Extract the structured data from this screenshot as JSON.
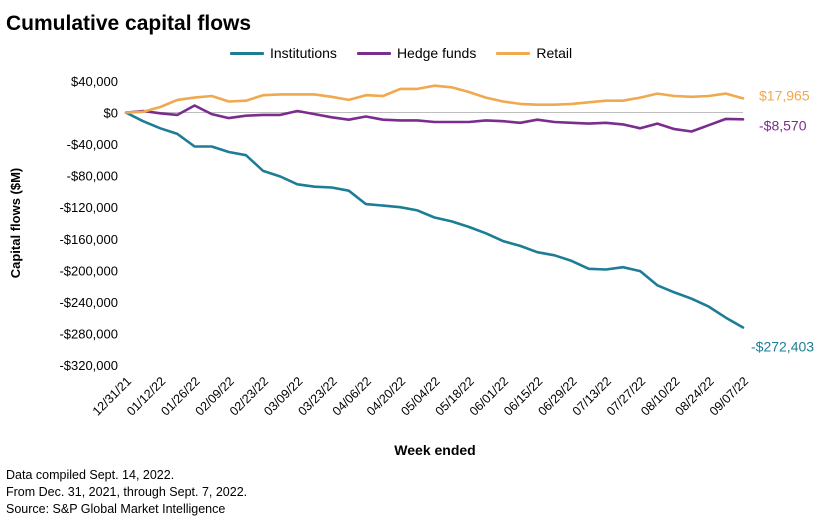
{
  "chart_data": {
    "type": "line",
    "title": "Cumulative capital flows",
    "xlabel": "Week ended",
    "ylabel": "Capital flows ($M)",
    "ylim": [
      -320000,
      40000
    ],
    "yticks": [
      40000,
      0,
      -40000,
      -80000,
      -120000,
      -160000,
      -200000,
      -240000,
      -280000,
      -320000
    ],
    "ytick_labels": [
      "$40,000",
      "$0",
      "-$40,000",
      "-$80,000",
      "-$120,000",
      "-$160,000",
      "-$200,000",
      "-$240,000",
      "-$280,000",
      "-$320,000"
    ],
    "x": [
      "12/31/21",
      "01/05/22",
      "01/12/22",
      "01/19/22",
      "01/26/22",
      "02/02/22",
      "02/09/22",
      "02/16/22",
      "02/23/22",
      "03/02/22",
      "03/09/22",
      "03/16/22",
      "03/23/22",
      "03/30/22",
      "04/06/22",
      "04/13/22",
      "04/20/22",
      "04/27/22",
      "05/04/22",
      "05/11/22",
      "05/18/22",
      "05/25/22",
      "06/01/22",
      "06/08/22",
      "06/15/22",
      "06/22/22",
      "06/29/22",
      "07/06/22",
      "07/13/22",
      "07/20/22",
      "07/27/22",
      "08/03/22",
      "08/10/22",
      "08/17/22",
      "08/24/22",
      "08/31/22",
      "09/07/22"
    ],
    "x_tick_labels": [
      "12/31/21",
      "01/12/22",
      "01/26/22",
      "02/09/22",
      "02/23/22",
      "03/09/22",
      "03/23/22",
      "04/06/22",
      "04/20/22",
      "05/04/22",
      "05/18/22",
      "06/01/22",
      "06/15/22",
      "06/29/22",
      "07/13/22",
      "07/27/22",
      "08/10/22",
      "08/24/22",
      "09/07/22"
    ],
    "series": [
      {
        "name": "Institutions",
        "color": "#1d7d96",
        "end_label": "-$272,403",
        "values": [
          0,
          -11000,
          -20000,
          -27000,
          -43000,
          -43000,
          -50000,
          -54000,
          -74000,
          -81000,
          -91000,
          -94000,
          -95000,
          -99000,
          -116000,
          -118000,
          -120000,
          -124000,
          -133000,
          -138000,
          -145000,
          -153000,
          -163000,
          -169000,
          -177000,
          -181000,
          -188000,
          -198000,
          -199000,
          -196000,
          -201000,
          -219000,
          -228000,
          -236000,
          -246000,
          -260000,
          -272403
        ]
      },
      {
        "name": "Hedge funds",
        "color": "#7b2d8e",
        "end_label": "-$8,570",
        "values": [
          0,
          2000,
          -1000,
          -3000,
          9000,
          -2000,
          -7000,
          -4000,
          -3000,
          -3000,
          2000,
          -2000,
          -6000,
          -9000,
          -5000,
          -9000,
          -10000,
          -10000,
          -12000,
          -12000,
          -12000,
          -10000,
          -11000,
          -13000,
          -9000,
          -12000,
          -13000,
          -14000,
          -13000,
          -15000,
          -20000,
          -14000,
          -21000,
          -24000,
          -16000,
          -8000,
          -8570
        ]
      },
      {
        "name": "Retail",
        "color": "#f0a94e",
        "end_label": "$17,965",
        "values": [
          0,
          1000,
          7000,
          16000,
          19000,
          21000,
          14000,
          15000,
          22000,
          23000,
          23000,
          23000,
          20000,
          16000,
          22000,
          21000,
          30000,
          30000,
          34000,
          32000,
          26000,
          19000,
          14000,
          11000,
          10000,
          10000,
          11000,
          13000,
          15000,
          15000,
          19000,
          24000,
          21000,
          20000,
          21000,
          24000,
          17965
        ]
      }
    ],
    "footer": [
      "Data compiled Sept. 14, 2022.",
      "From Dec. 31, 2021, through Sept. 7, 2022.",
      "Source: S&P Global Market Intelligence"
    ]
  }
}
